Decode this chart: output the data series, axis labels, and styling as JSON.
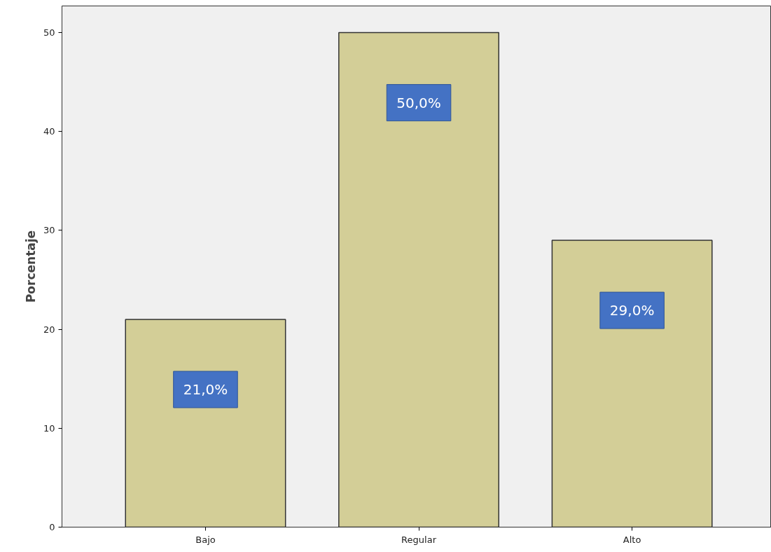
{
  "chart_data": {
    "type": "bar",
    "ylabel": "Porcentaje",
    "categories": [
      "Bajo",
      "Regular",
      "Alto"
    ],
    "values": [
      21,
      50,
      29
    ],
    "value_labels": [
      "21,0%",
      "50,0%",
      "29,0%"
    ],
    "color": "#d3ce97",
    "ylim": [
      0,
      52.7
    ],
    "yticks": [
      0,
      10,
      20,
      30,
      40,
      50
    ],
    "grid": false
  }
}
